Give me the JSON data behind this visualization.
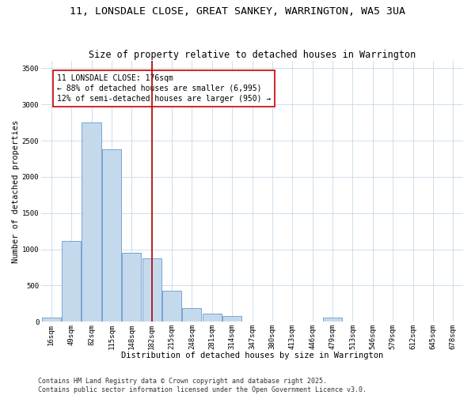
{
  "title1": "11, LONSDALE CLOSE, GREAT SANKEY, WARRINGTON, WA5 3UA",
  "title2": "Size of property relative to detached houses in Warrington",
  "xlabel": "Distribution of detached houses by size in Warrington",
  "ylabel": "Number of detached properties",
  "categories": [
    "16sqm",
    "49sqm",
    "82sqm",
    "115sqm",
    "148sqm",
    "182sqm",
    "215sqm",
    "248sqm",
    "281sqm",
    "314sqm",
    "347sqm",
    "380sqm",
    "413sqm",
    "446sqm",
    "479sqm",
    "513sqm",
    "546sqm",
    "579sqm",
    "612sqm",
    "645sqm",
    "678sqm"
  ],
  "values": [
    60,
    1120,
    2750,
    2380,
    950,
    870,
    430,
    190,
    115,
    80,
    0,
    0,
    0,
    0,
    60,
    0,
    0,
    0,
    0,
    0,
    0
  ],
  "bar_color": "#c5d9ed",
  "bar_edge_color": "#6699cc",
  "vline_x_index": 5,
  "vline_color": "#aa0000",
  "annotation_text": "11 LONSDALE CLOSE: 176sqm\n← 88% of detached houses are smaller (6,995)\n12% of semi-detached houses are larger (950) →",
  "annotation_box_color": "#ffffff",
  "annotation_box_edge": "#cc0000",
  "ylim": [
    0,
    3600
  ],
  "yticks": [
    0,
    500,
    1000,
    1500,
    2000,
    2500,
    3000,
    3500
  ],
  "footer1": "Contains HM Land Registry data © Crown copyright and database right 2025.",
  "footer2": "Contains public sector information licensed under the Open Government Licence v3.0.",
  "bg_color": "#ffffff",
  "grid_color": "#c8d8e8",
  "title1_fontsize": 9.5,
  "title2_fontsize": 8.5,
  "xlabel_fontsize": 7.5,
  "ylabel_fontsize": 7.5,
  "tick_fontsize": 6.5,
  "annotation_fontsize": 7,
  "footer_fontsize": 6
}
